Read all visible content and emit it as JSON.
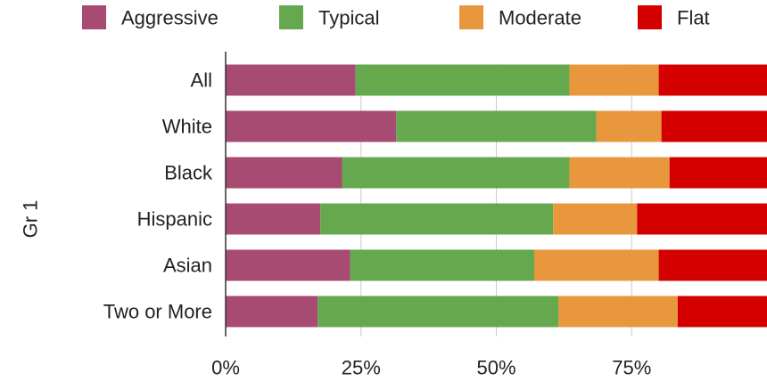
{
  "chart_data": {
    "type": "bar",
    "orientation": "horizontal",
    "stacked": "percent",
    "ylabel": "Gr 1",
    "xlabel": "",
    "categories": [
      "All",
      "White",
      "Black",
      "Hispanic",
      "Asian",
      "Two or More"
    ],
    "series": [
      {
        "name": "Aggressive",
        "color": "#a84b73",
        "values": [
          24,
          31.5,
          21.5,
          17.5,
          23,
          17
        ]
      },
      {
        "name": "Typical",
        "color": "#66a84e",
        "values": [
          39.5,
          37,
          42,
          43,
          34,
          44.5
        ]
      },
      {
        "name": "Moderate",
        "color": "#e9973d",
        "values": [
          16.5,
          12,
          18.5,
          15.5,
          23,
          22
        ]
      },
      {
        "name": "Flat",
        "color": "#d40000",
        "values": [
          20,
          19.5,
          18,
          24,
          20,
          16.5
        ]
      }
    ],
    "xlim": [
      0,
      100
    ],
    "x_ticks": [
      "0%",
      "25%",
      "50%",
      "75%"
    ],
    "x_tick_values": [
      0,
      25,
      50,
      75
    ],
    "grid": "vertical",
    "legend_position": "top"
  }
}
